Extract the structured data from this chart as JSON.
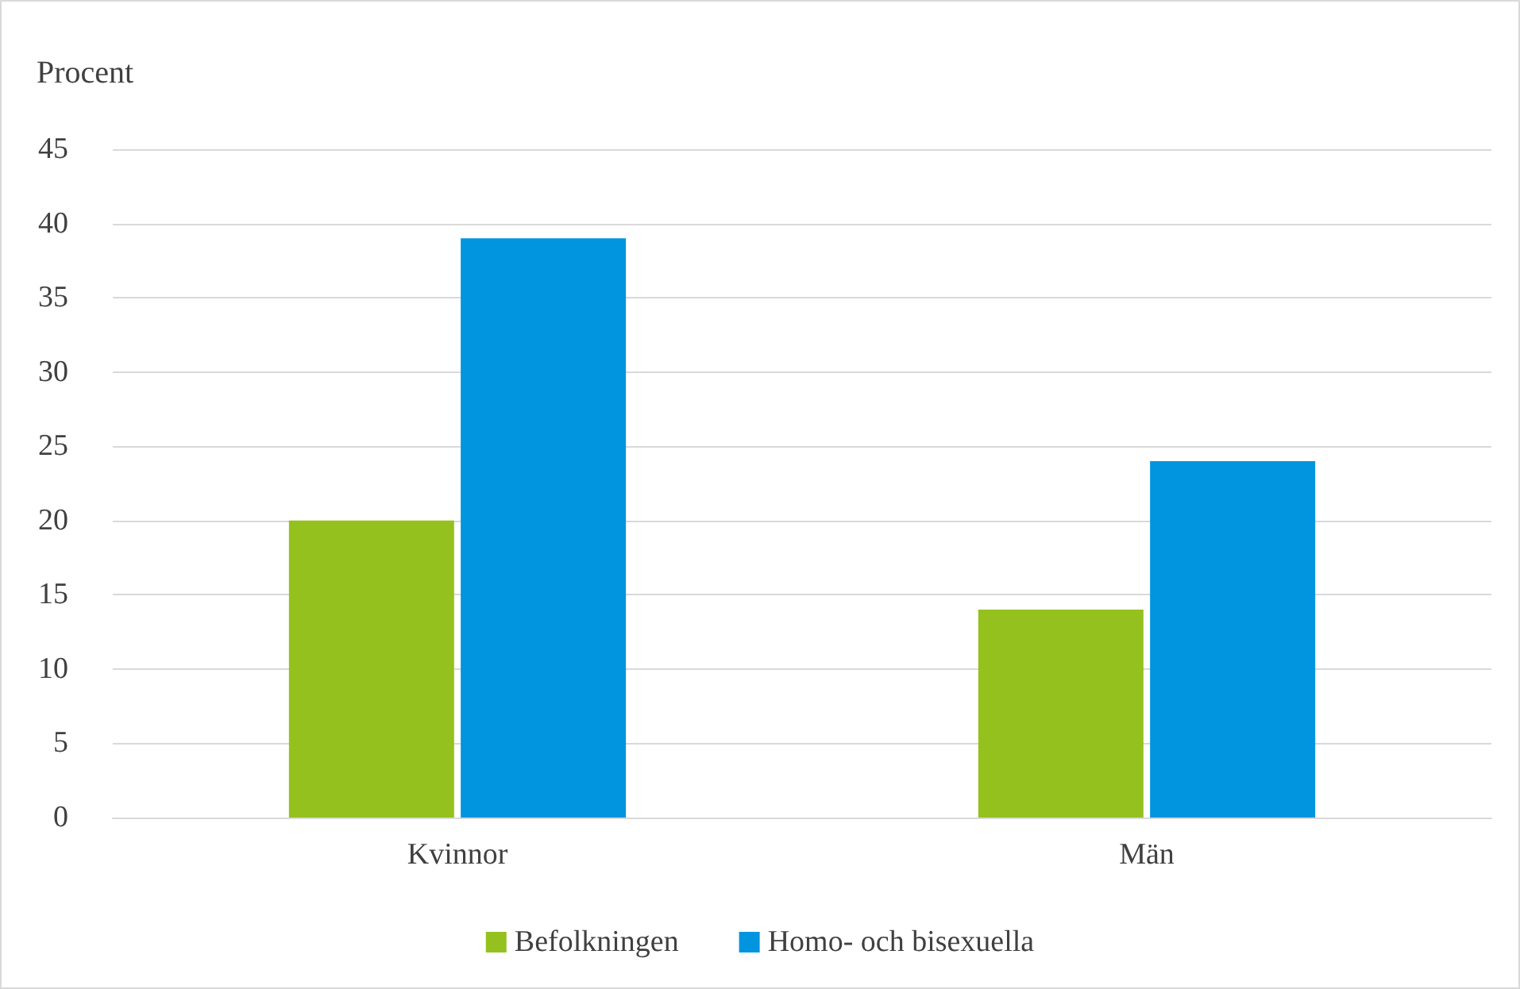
{
  "chart_data": {
    "type": "bar",
    "ylabel": "Procent",
    "categories": [
      "Kvinnor",
      "Män"
    ],
    "series": [
      {
        "name": "Befolkningen",
        "color": "#95c11f",
        "values": [
          20,
          14
        ]
      },
      {
        "name": "Homo- och bisexuella",
        "color": "#0095de",
        "values": [
          39,
          24
        ]
      }
    ],
    "ylim": [
      0,
      45
    ],
    "yticks": [
      0,
      5,
      10,
      15,
      20,
      25,
      30,
      35,
      40,
      45
    ],
    "grid": "y",
    "legend": "bottom"
  }
}
